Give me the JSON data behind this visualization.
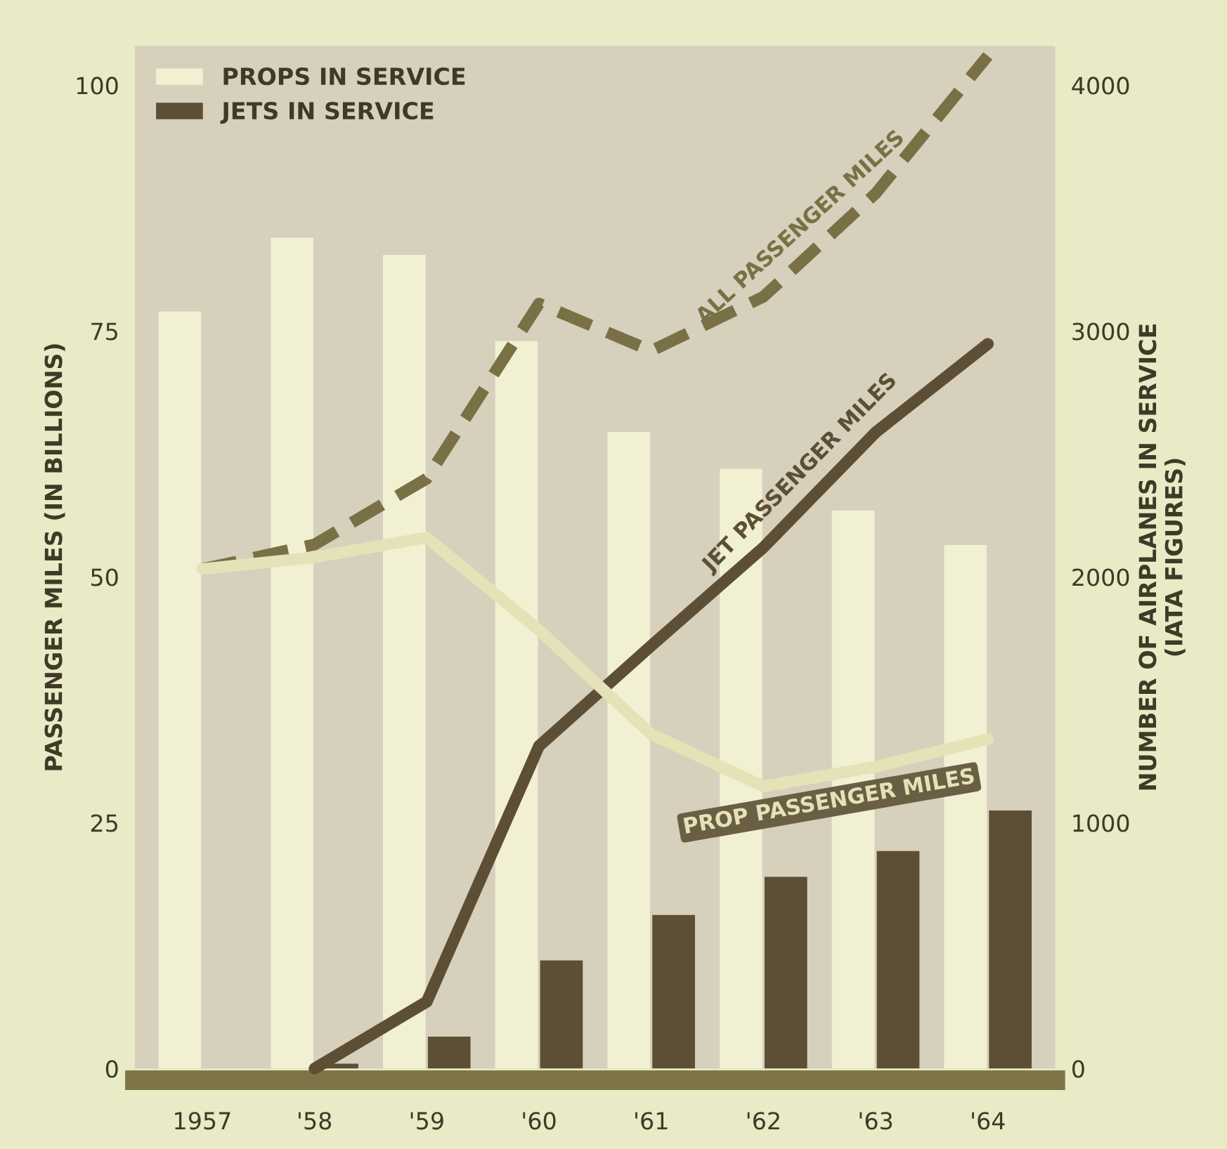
{
  "chart_data": {
    "type": "bar",
    "xlabel": null,
    "ylabel": "PASSENGER MILES (IN BILLIONS)",
    "y2label": "NUMBER OF AIRPLANES IN SERVICE\n(IATA FIGURES)",
    "categories": [
      "1957",
      "'58",
      "'59",
      "'60",
      "'61",
      "'62",
      "'63",
      "'64"
    ],
    "series": [
      {
        "name": "PROPS IN SERVICE",
        "axis": "y2",
        "color": "#f2f0d2",
        "values": [
          3080,
          3380,
          3310,
          2960,
          2590,
          2440,
          2270,
          2130
        ]
      },
      {
        "name": "JETS IN SERVICE",
        "axis": "y2",
        "color": "#5c4f35",
        "values": [
          0,
          20,
          130,
          440,
          625,
          780,
          885,
          1050
        ]
      },
      {
        "name": "ALL PASSENGER MILES",
        "type": "line",
        "color": "#7a7045",
        "line_style": "dashed",
        "values": [
          50.8,
          53.3,
          60,
          77.8,
          73,
          78.5,
          89,
          103
        ]
      },
      {
        "name": "JET PASSENGER MILES",
        "type": "line",
        "color": "#5c4f35",
        "line_style": "solid",
        "values": [
          null,
          0,
          6.8,
          32.8,
          43,
          53,
          64.7,
          73.7
        ]
      },
      {
        "name": "PROP PASSENGER MILES",
        "type": "line",
        "color": "#e6e2b8",
        "line_style": "solid",
        "values": [
          50.8,
          52,
          54,
          44.6,
          34,
          28.7,
          30.7,
          33.5
        ]
      }
    ],
    "ylim": [
      0,
      104
    ],
    "yticks": [
      0,
      25,
      50,
      75,
      100
    ],
    "y2lim": [
      0,
      4160
    ],
    "y2ticks": [
      0,
      1000,
      2000,
      3000,
      4000
    ],
    "grid": false,
    "legend": "top left",
    "marker": "none"
  }
}
